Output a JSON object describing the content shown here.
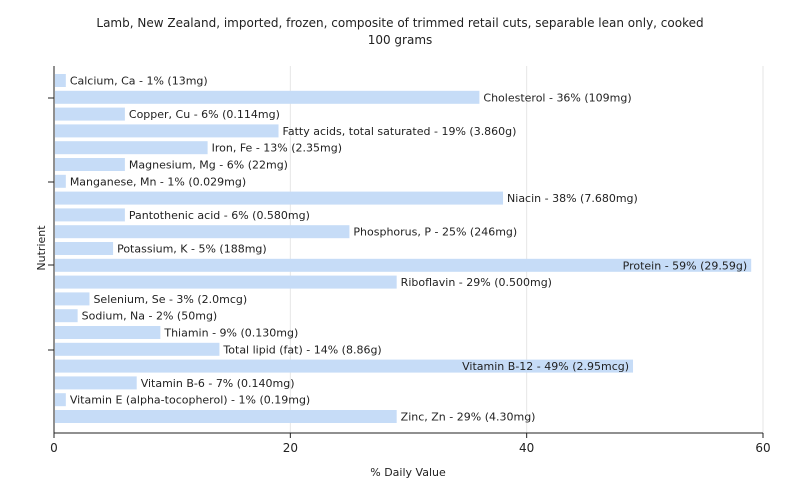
{
  "chart_data": {
    "type": "bar",
    "orientation": "horizontal",
    "title_line1": "Lamb, New Zealand, imported, frozen, composite of trimmed retail cuts, separable lean only, cooked",
    "title_line2": "100 grams",
    "xlabel": "% Daily Value",
    "ylabel": "Nutrient",
    "xlim": [
      0,
      60
    ],
    "xticks": [
      "0",
      "20",
      "40",
      "60"
    ],
    "xtick_values": [
      0,
      20,
      40,
      60
    ],
    "grid": true,
    "bar_color": "#c6dcf7",
    "categories": [
      "Calcium, Ca",
      "Cholesterol",
      "Copper, Cu",
      "Fatty acids, total saturated",
      "Iron, Fe",
      "Magnesium, Mg",
      "Manganese, Mn",
      "Niacin",
      "Pantothenic acid",
      "Phosphorus, P",
      "Potassium, K",
      "Protein",
      "Riboflavin",
      "Selenium, Se",
      "Sodium, Na",
      "Thiamin",
      "Total lipid (fat)",
      "Vitamin B-12",
      "Vitamin B-6",
      "Vitamin E (alpha-tocopherol)",
      "Zinc, Zn"
    ],
    "values": [
      1,
      36,
      6,
      19,
      13,
      6,
      1,
      38,
      6,
      25,
      5,
      59,
      29,
      3,
      2,
      9,
      14,
      49,
      7,
      1,
      29
    ],
    "labels": [
      "Calcium, Ca - 1% (13mg)",
      "Cholesterol - 36% (109mg)",
      "Copper, Cu - 6% (0.114mg)",
      "Fatty acids, total saturated - 19% (3.860g)",
      "Iron, Fe - 13% (2.35mg)",
      "Magnesium, Mg - 6% (22mg)",
      "Manganese, Mn - 1% (0.029mg)",
      "Niacin - 38% (7.680mg)",
      "Pantothenic acid - 6% (0.580mg)",
      "Phosphorus, P - 25% (246mg)",
      "Potassium, K - 5% (188mg)",
      "Protein - 59% (29.59g)",
      "Riboflavin - 29% (0.500mg)",
      "Selenium, Se - 3% (2.0mcg)",
      "Sodium, Na - 2% (50mg)",
      "Thiamin - 9% (0.130mg)",
      "Total lipid (fat) - 14% (8.86g)",
      "Vitamin B-12 - 49% (2.95mcg)",
      "Vitamin B-6 - 7% (0.140mg)",
      "Vitamin E (alpha-tocopherol) - 1% (0.19mg)",
      "Zinc, Zn - 29% (4.30mg)"
    ]
  }
}
